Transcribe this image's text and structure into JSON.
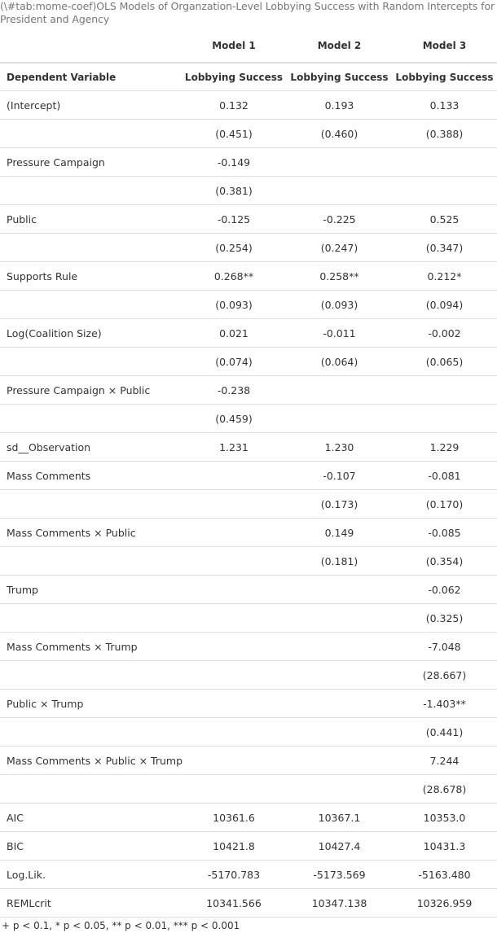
{
  "caption": "(\\#tab:mome-coef)OLS Models of Organzation-Level Lobbying Success with Random Intercepts for President and Agency",
  "header": {
    "models": [
      "Model 1",
      "Model 2",
      "Model 3"
    ],
    "dv_label": "Dependent Variable",
    "dv_values": [
      "Lobbying Success",
      "Lobbying Success",
      "Lobbying Success"
    ]
  },
  "rows": [
    {
      "label": "(Intercept)",
      "v": [
        "0.132",
        "0.193",
        "0.133"
      ]
    },
    {
      "label": "",
      "v": [
        "(0.451)",
        "(0.460)",
        "(0.388)"
      ]
    },
    {
      "label": "Pressure Campaign",
      "v": [
        "-0.149",
        "",
        ""
      ]
    },
    {
      "label": "",
      "v": [
        "(0.381)",
        "",
        ""
      ]
    },
    {
      "label": "Public",
      "v": [
        "-0.125",
        "-0.225",
        "0.525"
      ]
    },
    {
      "label": "",
      "v": [
        "(0.254)",
        "(0.247)",
        "(0.347)"
      ]
    },
    {
      "label": "Supports Rule",
      "v": [
        "0.268**",
        "0.258**",
        "0.212*"
      ]
    },
    {
      "label": "",
      "v": [
        "(0.093)",
        "(0.093)",
        "(0.094)"
      ]
    },
    {
      "label": "Log(Coalition Size)",
      "v": [
        "0.021",
        "-0.011",
        "-0.002"
      ]
    },
    {
      "label": "",
      "v": [
        "(0.074)",
        "(0.064)",
        "(0.065)"
      ]
    },
    {
      "label": "Pressure Campaign × Public",
      "v": [
        "-0.238",
        "",
        ""
      ]
    },
    {
      "label": "",
      "v": [
        "(0.459)",
        "",
        ""
      ]
    },
    {
      "label": "sd__Observation",
      "v": [
        "1.231",
        "1.230",
        "1.229"
      ]
    },
    {
      "label": "Mass Comments",
      "v": [
        "",
        "-0.107",
        "-0.081"
      ]
    },
    {
      "label": "",
      "v": [
        "",
        "(0.173)",
        "(0.170)"
      ]
    },
    {
      "label": "Mass Comments × Public",
      "v": [
        "",
        "0.149",
        "-0.085"
      ]
    },
    {
      "label": "",
      "v": [
        "",
        "(0.181)",
        "(0.354)"
      ]
    },
    {
      "label": "Trump",
      "v": [
        "",
        "",
        "-0.062"
      ]
    },
    {
      "label": "",
      "v": [
        "",
        "",
        "(0.325)"
      ]
    },
    {
      "label": "Mass Comments × Trump",
      "v": [
        "",
        "",
        "-7.048"
      ]
    },
    {
      "label": "",
      "v": [
        "",
        "",
        "(28.667)"
      ]
    },
    {
      "label": "Public × Trump",
      "v": [
        "",
        "",
        "-1.403**"
      ]
    },
    {
      "label": "",
      "v": [
        "",
        "",
        "(0.441)"
      ]
    },
    {
      "label": "Mass Comments × Public × Trump",
      "v": [
        "",
        "",
        "7.244"
      ]
    },
    {
      "label": "",
      "v": [
        "",
        "",
        "(28.678)"
      ]
    },
    {
      "label": "AIC",
      "v": [
        "10361.6",
        "10367.1",
        "10353.0"
      ]
    },
    {
      "label": "BIC",
      "v": [
        "10421.8",
        "10427.4",
        "10431.3"
      ]
    },
    {
      "label": "Log.Lik.",
      "v": [
        "-5170.783",
        "-5173.569",
        "-5163.480"
      ]
    },
    {
      "label": "REMLcrit",
      "v": [
        "10341.566",
        "10347.138",
        "10326.959"
      ]
    }
  ],
  "note": "+ p < 0.1, * p < 0.05, ** p < 0.01, *** p < 0.001"
}
